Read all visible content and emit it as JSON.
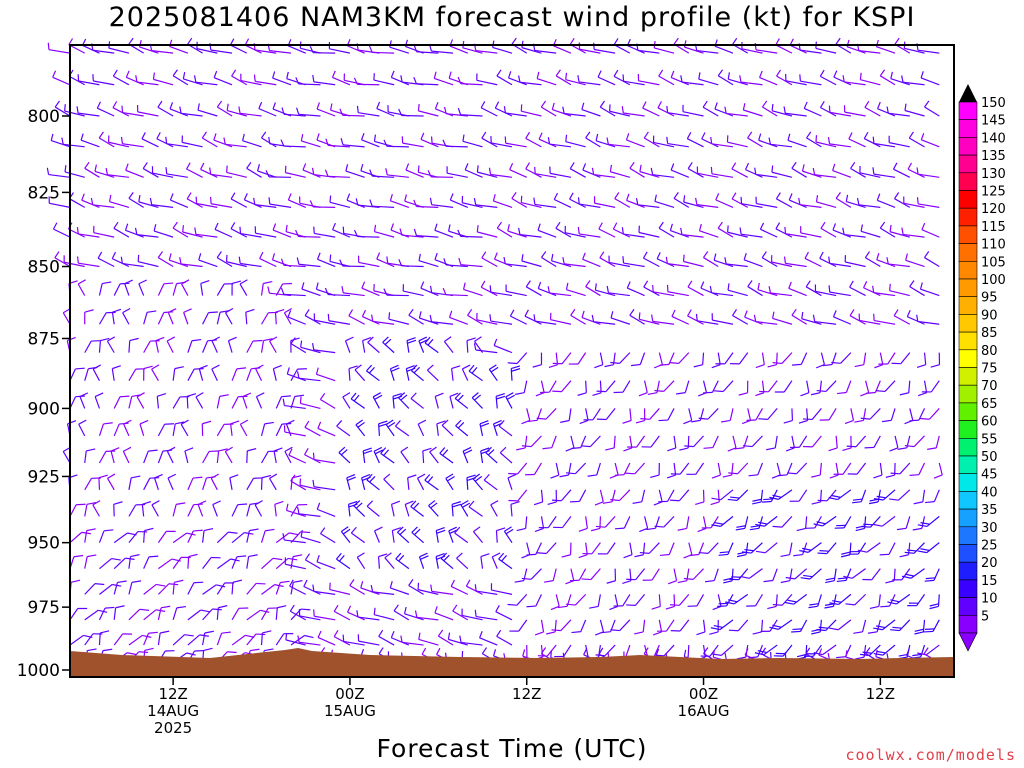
{
  "title": "2025081406 NAM3KM forecast wind profile (kt) for KSPI",
  "credit": "coolwx.com/models",
  "chart_data": {
    "type": "wind-barb-timeseries",
    "title": "2025081406 NAM3KM forecast wind profile (kt) for KSPI",
    "xlabel": "Forecast Time (UTC)",
    "ylabel": "",
    "x_ticks": [
      {
        "hour": 6,
        "lines": [
          "12Z",
          "14AUG",
          "2025"
        ]
      },
      {
        "hour": 18,
        "lines": [
          "00Z",
          "15AUG"
        ]
      },
      {
        "hour": 30,
        "lines": [
          "12Z"
        ]
      },
      {
        "hour": 42,
        "lines": [
          "00Z",
          "16AUG"
        ]
      },
      {
        "hour": 54,
        "lines": [
          "12Z"
        ]
      }
    ],
    "xlim": [
      -1,
      59
    ],
    "y_ticks": [
      800,
      825,
      850,
      875,
      900,
      925,
      950,
      975,
      1000
    ],
    "ylim_hpa": [
      777,
      1000
    ],
    "colorbar": {
      "levels": [
        5,
        10,
        15,
        20,
        25,
        30,
        35,
        40,
        45,
        50,
        55,
        60,
        65,
        70,
        75,
        80,
        85,
        90,
        95,
        100,
        105,
        110,
        115,
        120,
        125,
        130,
        135,
        140,
        145,
        150
      ],
      "colors": [
        "#8a00ff",
        "#6200ff",
        "#3a00ff",
        "#1e1eff",
        "#1e50ff",
        "#1e78ff",
        "#16a0ff",
        "#10c8ff",
        "#00e8e8",
        "#00f0b0",
        "#00f070",
        "#20f020",
        "#60f000",
        "#a0f000",
        "#d0f000",
        "#ffff00",
        "#ffe000",
        "#ffc800",
        "#ffb000",
        "#ff9a00",
        "#ff8800",
        "#ff7000",
        "#ff5000",
        "#ff2000",
        "#ff0000",
        "#ff0050",
        "#ff0090",
        "#ff00c0",
        "#ff00e0",
        "#ff00ff"
      ]
    },
    "wind_field": {
      "hours": [
        -1,
        0,
        1,
        2,
        3,
        4,
        5,
        6,
        7,
        8,
        9,
        10,
        11,
        12,
        13,
        14,
        15,
        16,
        17,
        18,
        19,
        20,
        21,
        22,
        23,
        24,
        25,
        26,
        27,
        28,
        29,
        30,
        31,
        32,
        33,
        34,
        35,
        36,
        37,
        38,
        39,
        40,
        41,
        42,
        43,
        44,
        45,
        46,
        47,
        48,
        49,
        50,
        51,
        52,
        53,
        54,
        55,
        56,
        57,
        58
      ],
      "levels_hpa": [
        780,
        790,
        800,
        810,
        820,
        830,
        840,
        850,
        860,
        870,
        880,
        890,
        900,
        910,
        920,
        930,
        940,
        950,
        960,
        970,
        980,
        990,
        997
      ],
      "description_regimes": [
        {
          "hours": [
            -1,
            14
          ],
          "levels": [
            780,
            860
          ],
          "dir_deg": 300,
          "speed_kt": 10
        },
        {
          "hours": [
            -1,
            14
          ],
          "levels": [
            860,
            950
          ],
          "dir_deg": 0,
          "speed_kt": 10
        },
        {
          "hours": [
            -1,
            14
          ],
          "levels": [
            950,
            997
          ],
          "dir_deg": 20,
          "speed_kt": 10
        },
        {
          "hours": [
            14,
            28
          ],
          "levels": [
            780,
            860
          ],
          "dir_deg": 290,
          "speed_kt": 10
        },
        {
          "hours": [
            18,
            30
          ],
          "levels": [
            880,
            960
          ],
          "dir_deg": 340,
          "speed_kt": 15
        },
        {
          "hours": [
            28,
            58
          ],
          "levels": [
            780,
            880
          ],
          "dir_deg": 300,
          "speed_kt": 10
        },
        {
          "hours": [
            30,
            58
          ],
          "levels": [
            880,
            990
          ],
          "dir_deg": 190,
          "speed_kt": 10
        },
        {
          "hours": [
            44,
            58
          ],
          "levels": [
            930,
            990
          ],
          "dir_deg": 200,
          "speed_kt": 15
        }
      ]
    },
    "terrain_color": "#a0522d"
  }
}
